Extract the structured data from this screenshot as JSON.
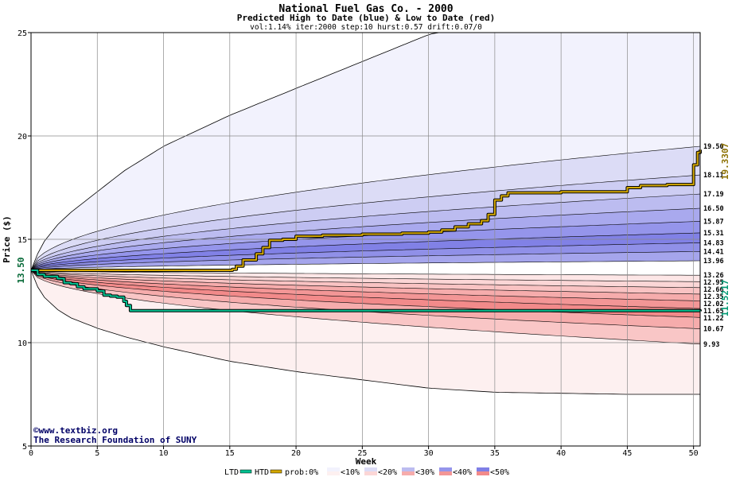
{
  "chart_data": {
    "type": "line",
    "title": "National Fuel Gas Co. - 2000",
    "subtitle": "Predicted High to Date (blue) &  Low to Date (red)",
    "params": "vol:1.14% iter:2000 step:10 hurst:0.57 drift:0.07/0",
    "xlabel": "Week",
    "ylabel": "Price ($)",
    "xlim": [
      0,
      50.5
    ],
    "ylim": [
      5,
      25
    ],
    "x_ticks": [
      0,
      5,
      10,
      15,
      20,
      25,
      30,
      35,
      40,
      45,
      50
    ],
    "y_ticks": [
      5,
      10,
      15,
      20,
      25
    ],
    "start_price": 13.5,
    "start_label": "13.50",
    "upper_envelope": {
      "x": [
        0,
        0.5,
        1,
        2,
        3,
        5,
        7,
        10,
        15,
        20,
        25,
        30,
        33,
        35,
        40,
        45,
        50.5
      ],
      "y": [
        13.5,
        14.3,
        14.9,
        15.7,
        16.3,
        17.3,
        18.3,
        19.5,
        21.0,
        22.3,
        23.6,
        24.9,
        25.4,
        25.6,
        25.8,
        25.9,
        26.0
      ]
    },
    "lower_envelope": {
      "x": [
        0,
        0.5,
        1,
        2,
        3,
        5,
        7,
        10,
        15,
        20,
        25,
        30,
        35,
        40,
        45,
        50.5
      ],
      "y": [
        13.5,
        12.7,
        12.2,
        11.6,
        11.2,
        10.7,
        10.3,
        9.8,
        9.1,
        8.6,
        8.2,
        7.8,
        7.6,
        7.55,
        7.5,
        7.5
      ]
    },
    "upper_bands": {
      "final_values": [
        19.5,
        18.11,
        17.19,
        16.5,
        15.87,
        15.31,
        14.83,
        14.41,
        13.96
      ],
      "labels": [
        "19.50",
        "18.11",
        "17.19",
        "16.50",
        "15.87",
        "15.31",
        "14.83",
        "14.41",
        "13.96"
      ],
      "fill_colors": [
        "#dcdcf6",
        "#cdcdf3",
        "#bcbcf0",
        "#a9a9ee",
        "#9595eb",
        "#8181e6",
        "#9090e8",
        "#a5a5ec",
        "#c4c4f2"
      ]
    },
    "lower_bands": {
      "final_values": [
        13.26,
        12.95,
        12.66,
        12.35,
        12.02,
        11.65,
        11.22,
        10.67,
        9.93
      ],
      "labels": [
        "13.26",
        "12.95",
        "12.66",
        "12.35",
        "12.02",
        "11.65",
        "11.22",
        "10.67",
        "9.93"
      ],
      "fill_colors": [
        "#fde6e6",
        "#fbd6d6",
        "#f9c3c3",
        "#f6acac",
        "#f39696",
        "#f28a8a",
        "#f6acac",
        "#f9c6c6",
        "#fde0e0"
      ]
    },
    "above_fill": "#f2f2fd",
    "below_fill": "#fdf0f0",
    "htd_series": {
      "name": "HTD",
      "color": "#d4a800",
      "final_value": 19.3307,
      "final_label": "19.3307",
      "x": [
        0,
        2,
        5,
        10,
        15.2,
        15.5,
        16,
        17,
        17.5,
        18,
        19,
        20,
        22,
        25,
        28,
        30,
        31,
        32,
        33,
        34,
        34.5,
        35,
        35.5,
        36,
        40,
        45,
        46,
        48,
        49.8,
        50,
        50.3,
        50.5
      ],
      "y": [
        13.5,
        13.5,
        13.5,
        13.5,
        13.55,
        13.7,
        14.0,
        14.3,
        14.6,
        14.95,
        15.0,
        15.15,
        15.2,
        15.25,
        15.3,
        15.35,
        15.45,
        15.6,
        15.75,
        15.9,
        16.2,
        16.9,
        17.1,
        17.25,
        17.3,
        17.5,
        17.6,
        17.65,
        17.65,
        18.6,
        19.2,
        19.33
      ]
    },
    "ltd_series": {
      "name": "LTD",
      "color": "#00c090",
      "final_value": 11.5217,
      "final_label": "11.5217",
      "x": [
        0,
        0.5,
        1,
        2,
        2.5,
        3,
        3.5,
        4,
        5,
        5.5,
        6,
        6.5,
        7,
        7.2,
        7.5,
        10,
        15,
        20,
        25,
        30,
        35,
        40,
        45,
        50.5
      ],
      "y": [
        13.5,
        13.3,
        13.2,
        13.1,
        12.9,
        12.85,
        12.7,
        12.6,
        12.5,
        12.3,
        12.25,
        12.2,
        12.0,
        11.8,
        11.55,
        11.55,
        11.55,
        11.55,
        11.55,
        11.55,
        11.55,
        11.55,
        11.55,
        11.52
      ]
    },
    "grid": true
  },
  "watermark": {
    "site": "www.textbiz.org",
    "org": "The Research Foundation of SUNY"
  },
  "legend": {
    "ltd": "LTD",
    "htd": "HTD",
    "prob_prefix": "prob:0%",
    "items": [
      "<10%",
      "<20%",
      "<30%",
      "<40%",
      "<50%"
    ],
    "ltd_color": "#00c090",
    "htd_color": "#d4a800",
    "swatches": [
      {
        "top": "#f2f2fd",
        "bottom": "#fdf0f0"
      },
      {
        "top": "#dcdcf6",
        "bottom": "#fbd6d6"
      },
      {
        "top": "#bcbcf0",
        "bottom": "#f6acac"
      },
      {
        "top": "#9595eb",
        "bottom": "#f39696"
      },
      {
        "top": "#7f7fe6",
        "bottom": "#f28a8a"
      }
    ]
  }
}
